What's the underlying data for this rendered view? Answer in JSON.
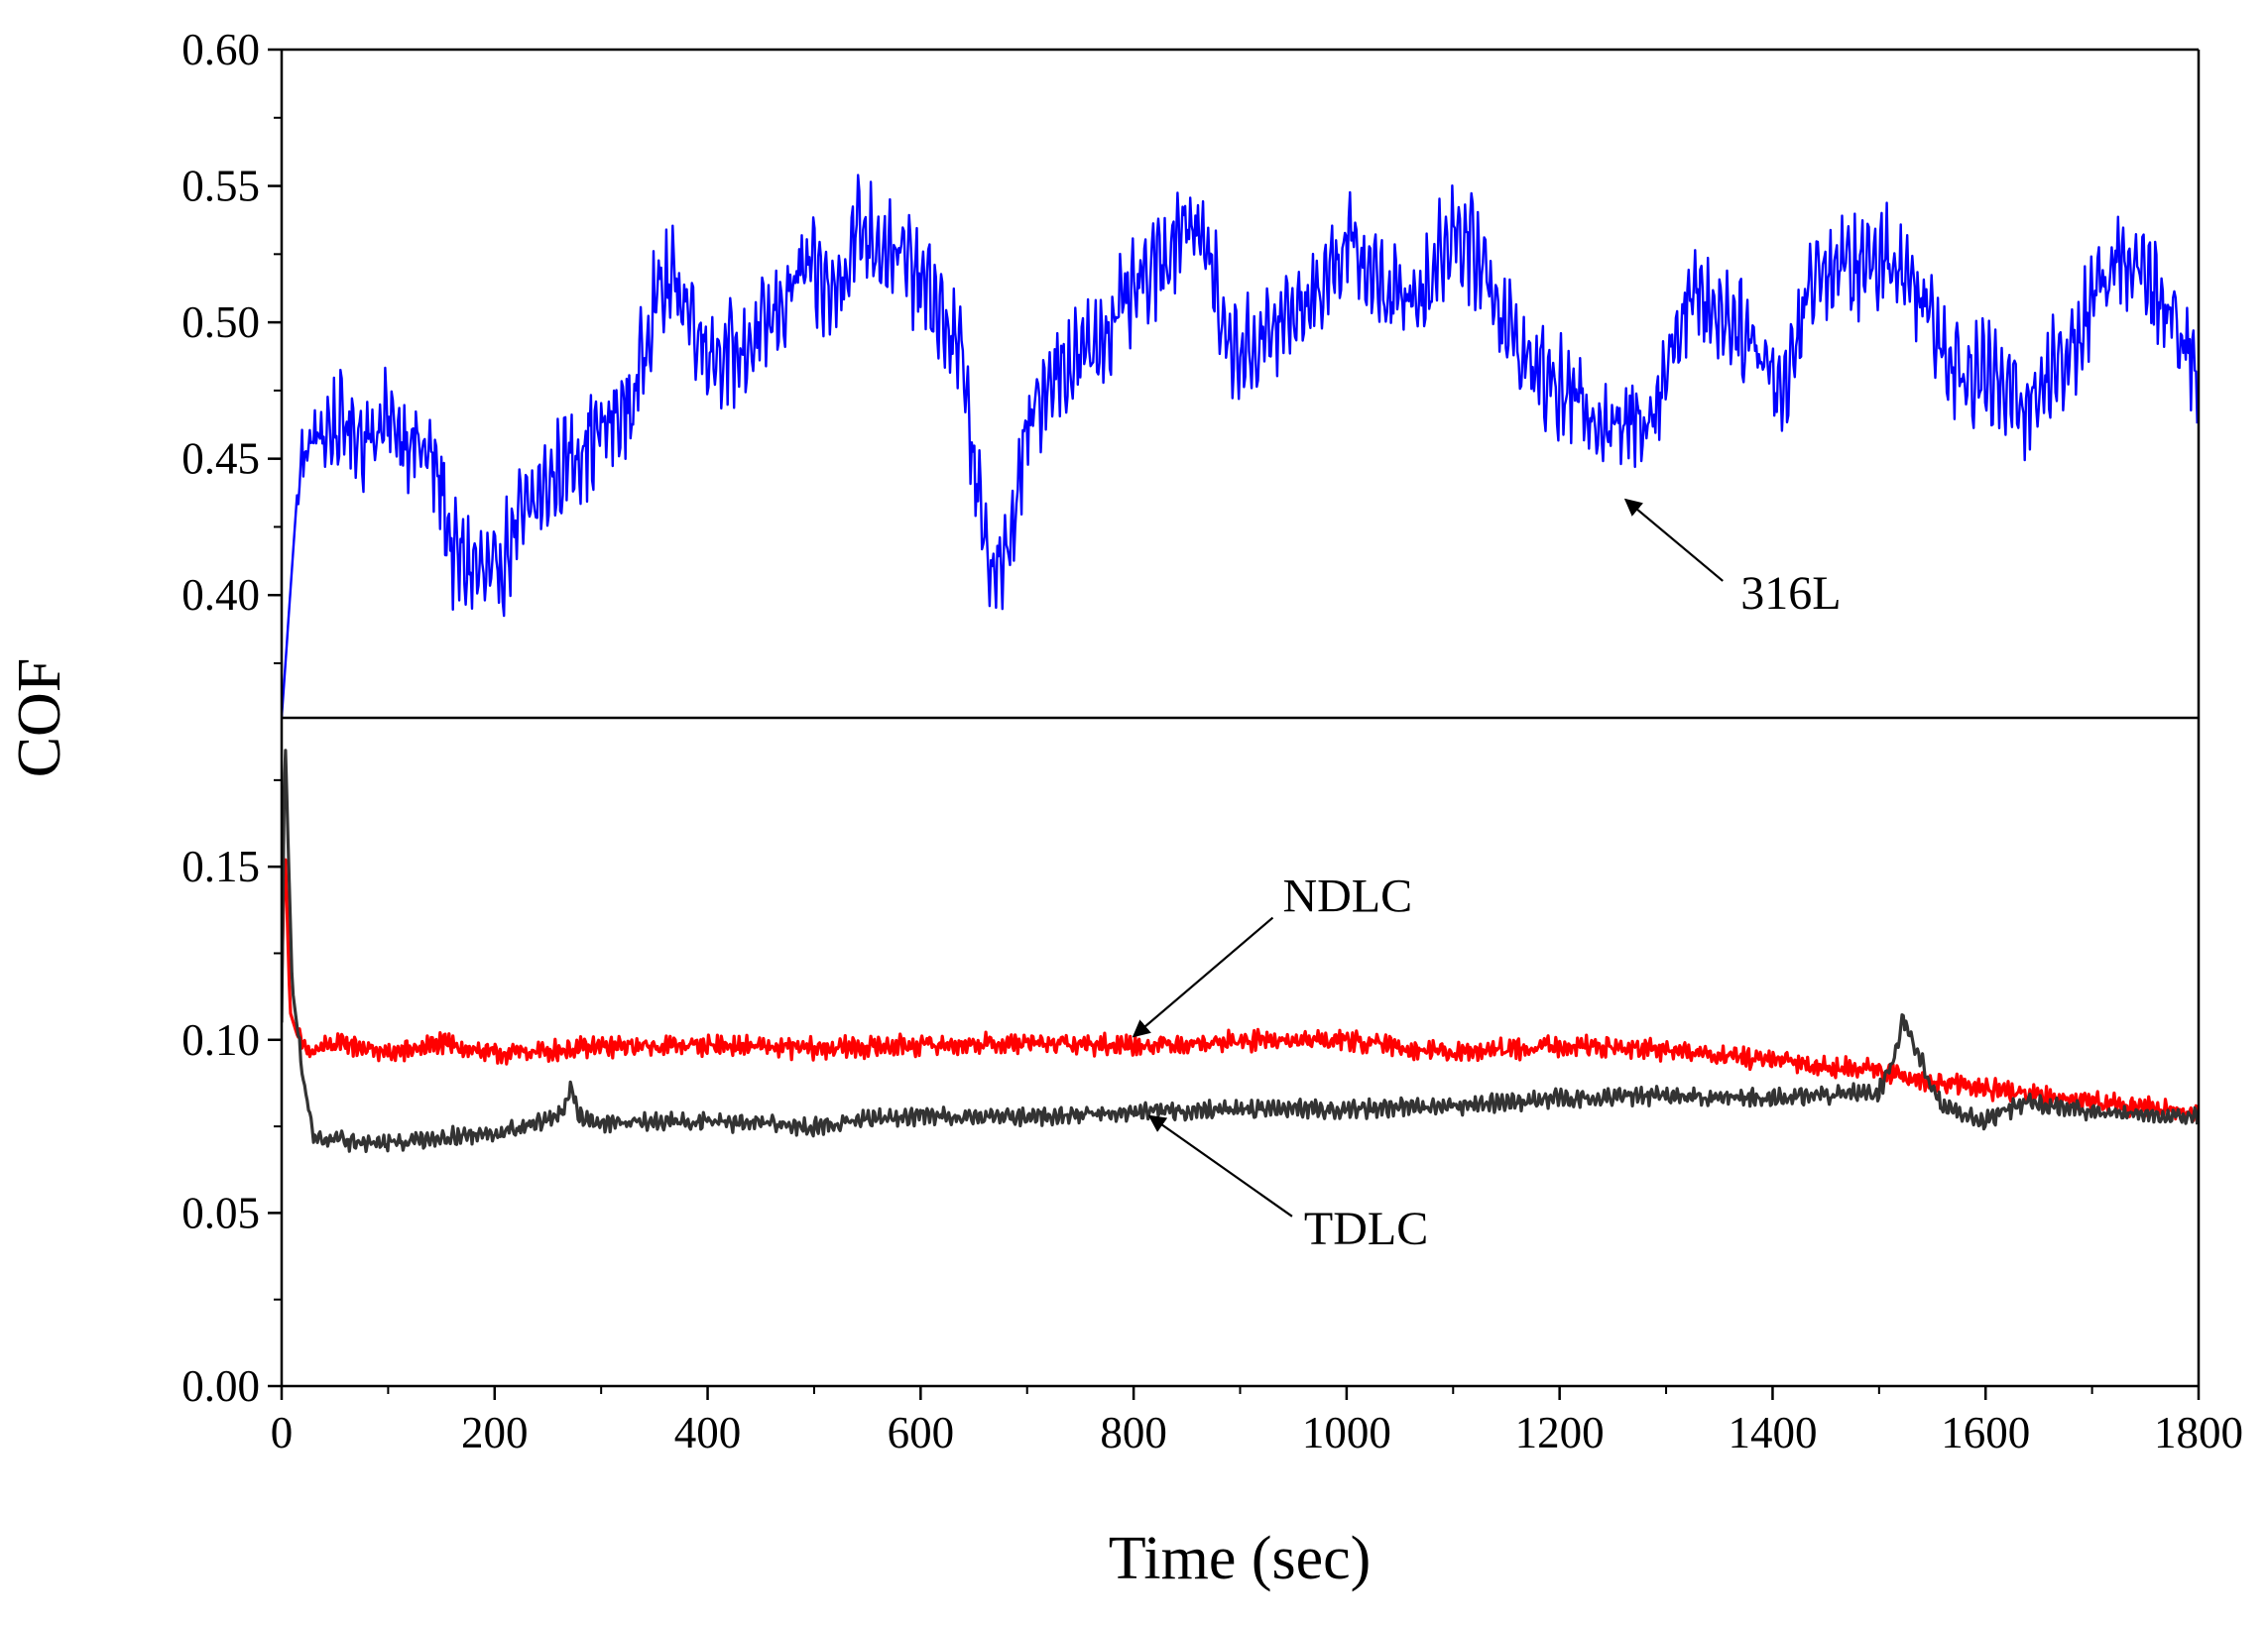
{
  "chart_data": {
    "type": "line",
    "ylabel": "COF",
    "xlabel": "Time (sec)",
    "xlim": [
      0,
      1800
    ],
    "x_ticks": [
      {
        "value": 0,
        "label": "0"
      },
      {
        "value": 200,
        "label": "200"
      },
      {
        "value": 400,
        "label": "400"
      },
      {
        "value": 600,
        "label": "600"
      },
      {
        "value": 800,
        "label": "800"
      },
      {
        "value": 1000,
        "label": "1000"
      },
      {
        "value": 1200,
        "label": "1200"
      },
      {
        "value": 1400,
        "label": "1400"
      },
      {
        "value": 1600,
        "label": "1600"
      },
      {
        "value": 1800,
        "label": "1800"
      }
    ],
    "panels": [
      {
        "name": "upper",
        "ylim": [
          0.355,
          0.6
        ],
        "y_ticks": [
          {
            "value": 0.4,
            "label": "0.40"
          },
          {
            "value": 0.45,
            "label": "0.45"
          },
          {
            "value": 0.5,
            "label": "0.50"
          },
          {
            "value": 0.55,
            "label": "0.55"
          },
          {
            "value": 0.6,
            "label": "0.60"
          }
        ],
        "series": [
          {
            "name": "316L",
            "color": "#0000ff",
            "noise": 0.022,
            "period": 6,
            "x": [
              0,
              8,
              15,
              25,
              40,
              60,
              80,
              100,
              120,
              140,
              150,
              160,
              180,
              200,
              220,
              250,
              270,
              300,
              330,
              350,
              370,
              400,
              430,
              460,
              490,
              520,
              540,
              560,
              580,
              610,
              640,
              660,
              680,
              700,
              720,
              760,
              800,
              830,
              850,
              870,
              890,
              910,
              940,
              970,
              1000,
              1040,
              1070,
              1100,
              1130,
              1160,
              1200,
              1240,
              1260,
              1290,
              1320,
              1350,
              1380,
              1410,
              1440,
              1480,
              1510,
              1540,
              1570,
              1600,
              1640,
              1680,
              1710,
              1730,
              1760,
              1790,
              1800
            ],
            "y": [
              0.355,
              0.4,
              0.44,
              0.455,
              0.46,
              0.462,
              0.458,
              0.463,
              0.458,
              0.45,
              0.44,
              0.415,
              0.41,
              0.405,
              0.425,
              0.44,
              0.45,
              0.46,
              0.47,
              0.51,
              0.515,
              0.49,
              0.488,
              0.5,
              0.52,
              0.51,
              0.535,
              0.53,
              0.525,
              0.51,
              0.485,
              0.415,
              0.41,
              0.46,
              0.48,
              0.49,
              0.51,
              0.525,
              0.54,
              0.525,
              0.49,
              0.49,
              0.5,
              0.51,
              0.53,
              0.51,
              0.51,
              0.535,
              0.52,
              0.49,
              0.475,
              0.465,
              0.46,
              0.47,
              0.51,
              0.505,
              0.495,
              0.475,
              0.52,
              0.52,
              0.525,
              0.51,
              0.485,
              0.48,
              0.47,
              0.49,
              0.515,
              0.525,
              0.51,
              0.49,
              0.475
            ]
          }
        ]
      },
      {
        "name": "lower",
        "ylim": [
          0.0,
          0.193
        ],
        "y_ticks": [
          {
            "value": 0.0,
            "label": "0.00"
          },
          {
            "value": 0.05,
            "label": "0.05"
          },
          {
            "value": 0.1,
            "label": "0.10"
          },
          {
            "value": 0.15,
            "label": "0.15"
          }
        ],
        "series": [
          {
            "name": "NDLC",
            "color": "#ff0000",
            "noise": 0.0035,
            "period": 4,
            "x": [
              0,
              3,
              8,
              15,
              25,
              40,
              60,
              100,
              150,
              200,
              260,
              300,
              400,
              500,
              600,
              700,
              800,
              900,
              1000,
              1100,
              1200,
              1300,
              1400,
              1500,
              1540,
              1600,
              1700,
              1800
            ],
            "y": [
              0.115,
              0.158,
              0.108,
              0.101,
              0.096,
              0.098,
              0.099,
              0.096,
              0.099,
              0.096,
              0.097,
              0.098,
              0.0985,
              0.0975,
              0.0985,
              0.099,
              0.0985,
              0.0995,
              0.1,
              0.096,
              0.0985,
              0.097,
              0.094,
              0.091,
              0.088,
              0.086,
              0.082,
              0.079
            ]
          },
          {
            "name": "TDLC",
            "color": "#333333",
            "noise": 0.003,
            "period": 5,
            "x": [
              0,
              3,
              10,
              20,
              30,
              45,
              100,
              150,
              200,
              240,
              265,
              272,
              280,
              300,
              400,
              500,
              550,
              600,
              700,
              800,
              900,
              1000,
              1100,
              1200,
              1300,
              1400,
              1500,
              1515,
              1522,
              1532,
              1545,
              1560,
              1600,
              1640,
              1700,
              1800
            ],
            "y": [
              0.105,
              0.19,
              0.115,
              0.09,
              0.072,
              0.071,
              0.07,
              0.072,
              0.073,
              0.076,
              0.079,
              0.086,
              0.078,
              0.076,
              0.0765,
              0.075,
              0.077,
              0.078,
              0.078,
              0.079,
              0.08,
              0.08,
              0.081,
              0.083,
              0.084,
              0.083,
              0.085,
              0.095,
              0.107,
              0.1,
              0.09,
              0.08,
              0.077,
              0.082,
              0.079,
              0.078
            ]
          }
        ]
      }
    ],
    "annotations": [
      {
        "text": "316L",
        "panel": "upper",
        "series": "316L",
        "point": [
          1262,
          0.435
        ],
        "label_at": [
          1370,
          0.395
        ]
      },
      {
        "text": "NDLC",
        "panel": "lower",
        "series": "NDLC",
        "point": [
          800,
          0.101
        ],
        "label_at": [
          940,
          0.137
        ]
      },
      {
        "text": "TDLC",
        "panel": "lower",
        "series": "TDLC",
        "point": [
          815,
          0.078
        ],
        "label_at": [
          960,
          0.041
        ]
      }
    ]
  }
}
